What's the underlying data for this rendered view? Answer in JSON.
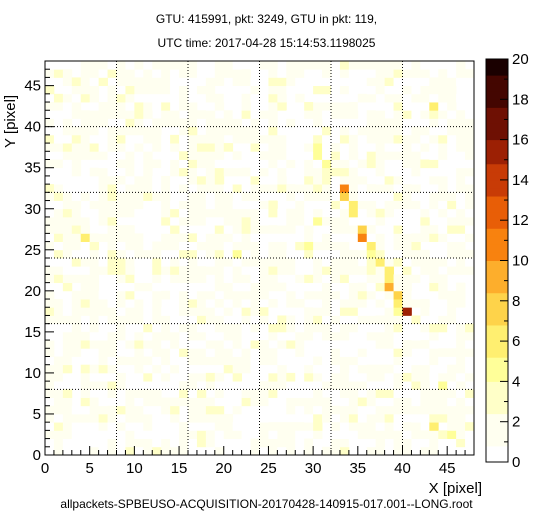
{
  "title_line1": "GTU: 415991, pkt: 3249, GTU in pkt: 119,",
  "title_line2": "UTC time: 2017-04-28 15:14:53.1198025",
  "footer": "allpackets-SPBEUSO-ACQUISITION-20170428-140915-017.001--LONG.root",
  "chart_data": {
    "type": "heatmap",
    "xlabel": "X [pixel]",
    "ylabel": "Y [pixel]",
    "xlim": [
      0,
      48
    ],
    "ylim": [
      0,
      48
    ],
    "zlim": [
      0,
      20
    ],
    "x_ticks": [
      0,
      5,
      10,
      15,
      20,
      25,
      30,
      35,
      40,
      45
    ],
    "y_ticks": [
      0,
      5,
      10,
      15,
      20,
      25,
      30,
      35,
      40,
      45
    ],
    "z_ticks": [
      0,
      2,
      4,
      6,
      8,
      10,
      12,
      14,
      16,
      18,
      20
    ],
    "grid": "dotted lines every 8 pixels (PMT boundaries)",
    "colormap": [
      "#ffffff",
      "#fffff0",
      "#ffffc8",
      "#ffff99",
      "#ffef70",
      "#fed34a",
      "#fdae2c",
      "#f8820f",
      "#e85e07",
      "#c83b06",
      "#9c2004",
      "#6e1003",
      "#440601",
      "#1a0000"
    ],
    "legend": "color bar right",
    "track": [
      [
        30,
        38,
        3.4
      ],
      [
        30,
        37,
        4.2
      ],
      [
        30,
        36,
        5.1
      ],
      [
        31,
        35,
        4.5
      ],
      [
        31,
        34,
        3.8
      ],
      [
        33,
        32,
        11.5
      ],
      [
        33,
        31,
        7.5
      ],
      [
        34,
        30,
        6.5
      ],
      [
        34,
        29,
        5.5
      ],
      [
        35,
        27,
        7.0
      ],
      [
        35,
        26,
        11.0
      ],
      [
        36,
        25,
        6.0
      ],
      [
        36,
        24,
        5.0
      ],
      [
        37,
        23,
        5.5
      ],
      [
        38,
        22,
        6.0
      ],
      [
        38,
        21,
        6.8
      ],
      [
        38,
        20,
        9.5
      ],
      [
        39,
        19,
        7.5
      ],
      [
        39,
        18,
        6.0
      ],
      [
        39,
        17,
        5.0
      ],
      [
        40,
        17,
        15.5
      ]
    ],
    "other_bright": [
      [
        4,
        26,
        6.0
      ],
      [
        21,
        24,
        5.0
      ],
      [
        29,
        25,
        5.0
      ],
      [
        30,
        28,
        4.5
      ],
      [
        43,
        42,
        6.0
      ],
      [
        43,
        3,
        5.5
      ],
      [
        45,
        2,
        4.5
      ],
      [
        44,
        8,
        4.0
      ]
    ],
    "background_seed": 415991,
    "background_level": 1.5
  }
}
